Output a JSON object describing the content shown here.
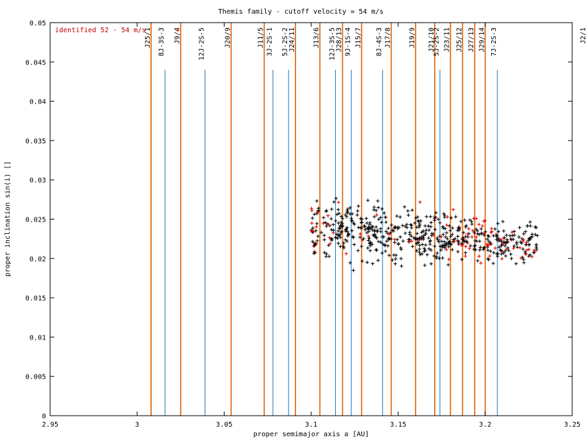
{
  "chart_data": {
    "type": "scatter",
    "title": "Themis family - cutoff velocity = 54 m/s",
    "xlabel": "proper semimajor axis a [AU]",
    "ylabel": "proper inclination sin(i) []",
    "xlim": [
      2.95,
      3.25
    ],
    "ylim": [
      0,
      0.05
    ],
    "xticks": [
      "2.95",
      "3",
      "3.05",
      "3.1",
      "3.15",
      "3.2",
      "3.25"
    ],
    "yticks": [
      "0",
      "0.005",
      "0.01",
      "0.015",
      "0.02",
      "0.025",
      "0.03",
      "0.035",
      "0.04",
      "0.045",
      "0.05"
    ],
    "legend": {
      "position": "top-left",
      "label": "identified 52 - 54 m/s",
      "marker": "+",
      "color": "#e00000"
    },
    "grid": false,
    "resonances": [
      {
        "label": "J25/1",
        "a": 3.008,
        "color": "#e06000",
        "height": 0.05
      },
      {
        "label": "8J-3S-3",
        "a": 3.016,
        "color": "#1f77b4",
        "height": 0.044
      },
      {
        "label": "J9/4",
        "a": 3.025,
        "color": "#e06000",
        "height": 0.05
      },
      {
        "label": "12J-2S-5",
        "a": 3.039,
        "color": "#1f77b4",
        "height": 0.044
      },
      {
        "label": "J20/9",
        "a": 3.054,
        "color": "#e06000",
        "height": 0.05
      },
      {
        "label": "J11/5",
        "a": 3.073,
        "color": "#e06000",
        "height": 0.05
      },
      {
        "label": "3J-2S-1",
        "a": 3.078,
        "color": "#1f77b4",
        "height": 0.044
      },
      {
        "label": "5J-2S-2",
        "a": 3.087,
        "color": "#1f77b4",
        "height": 0.044
      },
      {
        "label": "J24/11",
        "a": 3.091,
        "color": "#e06000",
        "height": 0.05
      },
      {
        "label": "J13/6",
        "a": 3.105,
        "color": "#e06000",
        "height": 0.05
      },
      {
        "label": "12J-3S-5",
        "a": 3.114,
        "color": "#1f77b4",
        "height": 0.044
      },
      {
        "label": "J28/13",
        "a": 3.118,
        "color": "#e06000",
        "height": 0.05
      },
      {
        "label": "9J-1S-4",
        "a": 3.123,
        "color": "#1f77b4",
        "height": 0.044
      },
      {
        "label": "J15/7",
        "a": 3.129,
        "color": "#e06000",
        "height": 0.05
      },
      {
        "label": "8J-4S-3",
        "a": 3.141,
        "color": "#1f77b4",
        "height": 0.044
      },
      {
        "label": "J17/8",
        "a": 3.146,
        "color": "#e06000",
        "height": 0.05
      },
      {
        "label": "J19/9",
        "a": 3.16,
        "color": "#e06000",
        "height": 0.05
      },
      {
        "label": "J21/10",
        "a": 3.171,
        "color": "#e06000",
        "height": 0.05
      },
      {
        "label": "5J-2S-2",
        "a": 3.174,
        "color": "#1f77b4",
        "height": 0.044
      },
      {
        "label": "J23/11",
        "a": 3.18,
        "color": "#e06000",
        "height": 0.05
      },
      {
        "label": "J25/12",
        "a": 3.187,
        "color": "#e06000",
        "height": 0.05
      },
      {
        "label": "J27/13",
        "a": 3.194,
        "color": "#e06000",
        "height": 0.05
      },
      {
        "label": "J29/14",
        "a": 3.2,
        "color": "#e06000",
        "height": 0.05
      },
      {
        "label": "7J-2S-3",
        "a": 3.207,
        "color": "#1f77b4",
        "height": 0.044
      },
      {
        "label": "J2/1",
        "a": 3.278,
        "color": "#e06000",
        "height": 0.05
      }
    ],
    "cluster": {
      "a_range": [
        3.1,
        3.23
      ],
      "sini_range": [
        0.015,
        0.031
      ],
      "member_color": "#000000",
      "identified_color": "#e00000"
    }
  }
}
